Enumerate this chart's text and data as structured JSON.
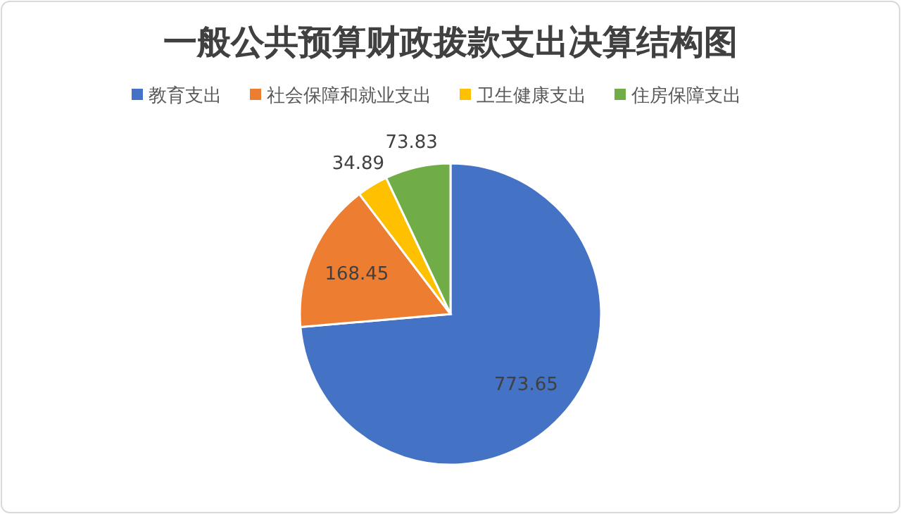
{
  "chart_data": {
    "type": "pie",
    "title": "一般公共预算财政拨款支出决算结构图",
    "categories": [
      "教育支出",
      "社会保障和就业支出",
      "卫生健康支出",
      "住房保障支出"
    ],
    "values": [
      773.65,
      168.45,
      34.89,
      73.83
    ],
    "colors": [
      "#4472c4",
      "#ed7d31",
      "#ffc000",
      "#70ad47"
    ],
    "data_labels": true,
    "legend": "top"
  }
}
